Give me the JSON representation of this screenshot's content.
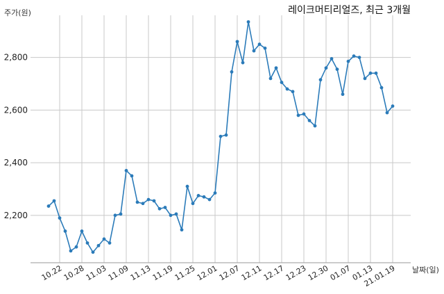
{
  "chart_data": {
    "type": "line",
    "title": "레이크머티리얼즈, 최근 3개월",
    "ylabel": "주가(원)",
    "xlabel": "날짜(일)",
    "ylim": [
      2020,
      2960
    ],
    "y_ticks": [
      2200,
      2400,
      2600,
      2800
    ],
    "y_tick_labels": [
      "2,200",
      "2,400",
      "2,600",
      "2,800"
    ],
    "x_ticks": [
      "10.22",
      "10.28",
      "11.03",
      "11.09",
      "11.13",
      "11.19",
      "11.25",
      "12.01",
      "12.07",
      "12.11",
      "12.17",
      "12.23",
      "12.30",
      "01.07",
      "01.13",
      "21.01.19"
    ],
    "x_tick_index": [
      2,
      6,
      10,
      14,
      18,
      22,
      26,
      30,
      34,
      38,
      42,
      46,
      50,
      54,
      58,
      62
    ],
    "grid": true,
    "color": "#2b7bb9",
    "series": [
      {
        "name": "",
        "values": [
          2235,
          2255,
          2190,
          2140,
          2065,
          2080,
          2140,
          2095,
          2060,
          2085,
          2110,
          2095,
          2200,
          2205,
          2370,
          2350,
          2250,
          2245,
          2260,
          2255,
          2225,
          2230,
          2200,
          2205,
          2145,
          2310,
          2245,
          2275,
          2270,
          2260,
          2285,
          2500,
          2505,
          2745,
          2860,
          2780,
          2935,
          2825,
          2850,
          2835,
          2720,
          2760,
          2705,
          2680,
          2670,
          2580,
          2585,
          2560,
          2540,
          2715,
          2760,
          2795,
          2755,
          2660,
          2785,
          2805,
          2800,
          2720,
          2740,
          2740,
          2685,
          2590,
          2615
        ]
      }
    ]
  }
}
